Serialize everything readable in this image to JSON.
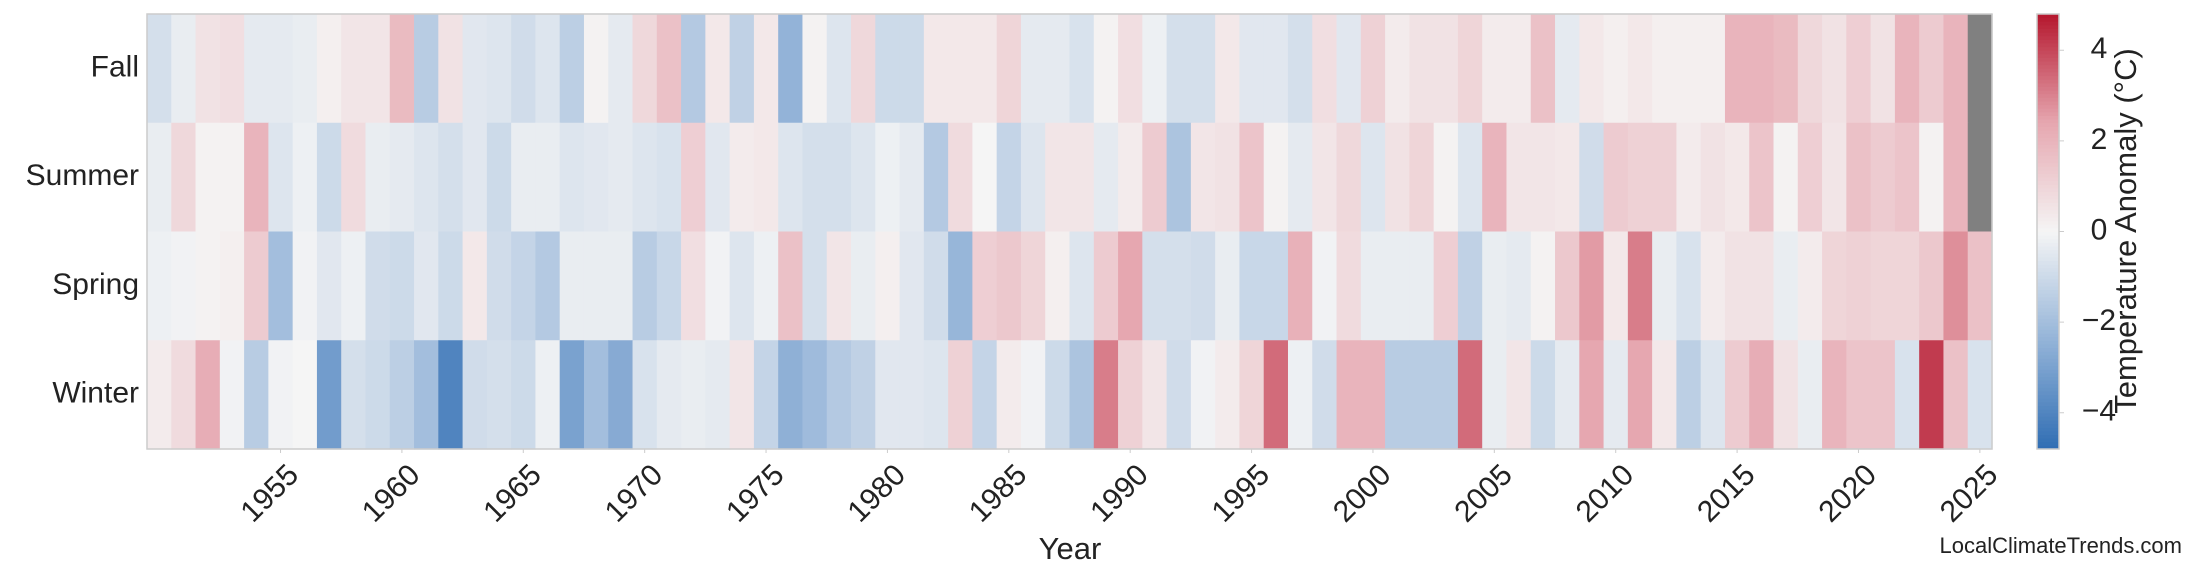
{
  "chart_data": {
    "type": "heatmap",
    "x_label": "Year",
    "colorbar_label": "Temperature Anomaly (°C)",
    "source": "LocalClimateTrends.com",
    "x": [
      1950,
      1951,
      1952,
      1953,
      1954,
      1955,
      1956,
      1957,
      1958,
      1959,
      1960,
      1961,
      1962,
      1963,
      1964,
      1965,
      1966,
      1967,
      1968,
      1969,
      1970,
      1971,
      1972,
      1973,
      1974,
      1975,
      1976,
      1977,
      1978,
      1979,
      1980,
      1981,
      1982,
      1983,
      1984,
      1985,
      1986,
      1987,
      1988,
      1989,
      1990,
      1991,
      1992,
      1993,
      1994,
      1995,
      1996,
      1997,
      1998,
      1999,
      2000,
      2001,
      2002,
      2003,
      2004,
      2005,
      2006,
      2007,
      2008,
      2009,
      2010,
      2011,
      2012,
      2013,
      2014,
      2015,
      2016,
      2017,
      2018,
      2019,
      2020,
      2021,
      2022,
      2023,
      2024,
      2025
    ],
    "series": [
      {
        "name": "Fall",
        "values": [
          -0.8,
          -0.3,
          0.6,
          0.7,
          -0.4,
          -0.4,
          -0.3,
          0.2,
          0.5,
          0.5,
          1.8,
          -1.5,
          0.6,
          -0.5,
          -0.6,
          -0.9,
          -0.6,
          -1.4,
          0.1,
          -0.4,
          0.9,
          1.6,
          -1.6,
          0.4,
          -1.3,
          0.4,
          -2.4,
          0.1,
          -0.6,
          0.9,
          -1.0,
          -1.0,
          0.4,
          0.4,
          0.4,
          1.0,
          -0.4,
          -0.4,
          -0.7,
          0.1,
          0.7,
          -0.2,
          -0.8,
          -0.8,
          0.4,
          -0.5,
          -0.5,
          -0.8,
          0.7,
          -0.5,
          1.1,
          0.3,
          0.6,
          0.6,
          1.0,
          0.3,
          0.3,
          1.6,
          -0.4,
          0.4,
          0.2,
          0.4,
          0.2,
          0.2,
          0.2,
          2.0,
          2.0,
          1.8,
          0.9,
          0.6,
          1.2,
          0.6,
          2.0,
          1.3,
          2.0,
          null
        ]
      },
      {
        "name": "Summer",
        "values": [
          -0.3,
          0.9,
          0.1,
          0.1,
          2.0,
          -0.6,
          -0.2,
          -1.0,
          0.8,
          -0.3,
          -0.4,
          -0.6,
          -0.8,
          -0.5,
          -1.0,
          -0.3,
          -0.3,
          -0.6,
          -0.5,
          -0.4,
          -0.6,
          -0.7,
          1.2,
          -0.5,
          0.3,
          0.4,
          -0.6,
          -0.8,
          -0.8,
          -0.6,
          -0.2,
          -0.4,
          -1.6,
          0.8,
          0.0,
          -1.2,
          -0.6,
          0.5,
          0.5,
          -0.4,
          0.3,
          1.3,
          -1.8,
          0.5,
          0.6,
          1.5,
          0.1,
          -0.4,
          0.5,
          0.9,
          -0.6,
          0.6,
          1.0,
          0.1,
          -0.6,
          2.0,
          0.5,
          0.5,
          0.4,
          -0.9,
          1.3,
          1.1,
          1.1,
          0.3,
          0.6,
          0.4,
          1.5,
          0.1,
          1.2,
          0.5,
          1.6,
          1.3,
          1.5,
          0.1,
          2.0,
          null
        ]
      },
      {
        "name": "Spring",
        "values": [
          -0.2,
          -0.1,
          0.1,
          0.2,
          1.3,
          -2.0,
          -0.1,
          -0.5,
          -0.2,
          -0.9,
          -1.0,
          -0.5,
          -1.0,
          0.4,
          -0.9,
          -1.2,
          -1.6,
          -0.3,
          -0.3,
          -0.3,
          -1.5,
          -1.1,
          0.7,
          -0.1,
          -0.6,
          -0.2,
          1.6,
          -0.8,
          0.5,
          -0.3,
          0.2,
          -0.5,
          -0.9,
          -2.3,
          1.2,
          1.4,
          1.0,
          0.2,
          -0.6,
          1.3,
          2.4,
          -0.8,
          -0.8,
          -0.9,
          -0.3,
          -1.1,
          -1.1,
          2.1,
          -0.1,
          0.8,
          -0.3,
          -0.3,
          -0.3,
          1.2,
          -1.3,
          -0.3,
          -0.4,
          0.1,
          1.4,
          2.6,
          0.4,
          3.1,
          -0.3,
          -0.7,
          0.3,
          0.6,
          0.6,
          -0.3,
          0.3,
          1.0,
          1.1,
          1.0,
          1.0,
          1.4,
          2.8,
          1.6
        ]
      },
      {
        "name": "Winter",
        "values": [
          0.3,
          0.8,
          2.2,
          -0.1,
          -1.5,
          -0.1,
          0.0,
          -3.2,
          -0.8,
          -1.0,
          -1.4,
          -2.0,
          -4.0,
          -0.9,
          -0.8,
          -1.0,
          -0.2,
          -3.0,
          -2.0,
          -2.7,
          -0.7,
          -0.4,
          -0.3,
          -0.4,
          0.5,
          -1.2,
          -2.5,
          -2.1,
          -1.6,
          -1.3,
          -0.5,
          -0.5,
          -0.6,
          1.1,
          -1.2,
          0.3,
          -0.1,
          -1.0,
          -1.8,
          3.1,
          1.1,
          0.5,
          -0.9,
          -0.1,
          0.3,
          1.0,
          3.4,
          -0.2,
          -0.9,
          2.0,
          2.0,
          -1.5,
          -1.5,
          -1.5,
          3.4,
          -0.3,
          0.5,
          -1.0,
          -0.4,
          2.4,
          -0.4,
          2.4,
          0.4,
          -1.4,
          -0.6,
          1.3,
          2.2,
          0.6,
          -0.3,
          2.0,
          1.5,
          1.5,
          -0.7,
          4.2,
          1.6,
          -0.7
        ]
      }
    ],
    "xlim": [
      1949.5,
      2025.5
    ],
    "xticks": [
      1955,
      1960,
      1965,
      1970,
      1975,
      1980,
      1985,
      1990,
      1995,
      2000,
      2005,
      2010,
      2015,
      2020,
      2025
    ],
    "clim": [
      -4.8,
      4.8
    ],
    "cticks": [
      {
        "value": -4,
        "label": "−4"
      },
      {
        "value": -2,
        "label": "−2"
      },
      0,
      2,
      4
    ],
    "colors": [
      "#2f6db3",
      "#93b3d8",
      "#f5f5f5",
      "#e6a7b0",
      "#b5172e"
    ],
    "null_color": "#808080"
  }
}
